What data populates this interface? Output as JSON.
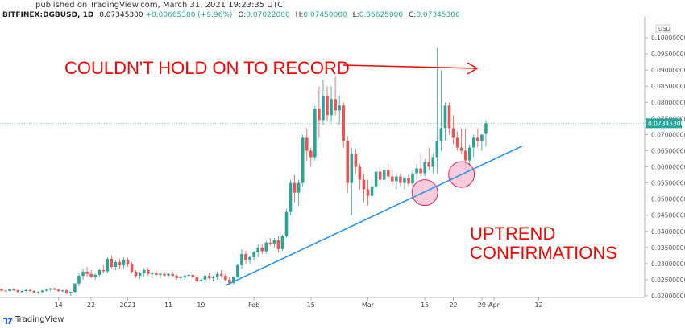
{
  "header": {
    "published": "published on TradingView.com, March 31, 2021 19:23:35 UTC",
    "symbol": "BITFINEX:DGBUSD, 1D",
    "price": "0.07345300",
    "change": "+0.00665300 (+9.96%)",
    "open_label": "O:",
    "open": "0.07022000",
    "high_label": "H:",
    "high": "0.07450000",
    "low_label": "L:",
    "low": "0.06625000",
    "close_label": "C:",
    "close": "0.07345300"
  },
  "footer": {
    "brand": "TradingView"
  },
  "colors": {
    "up": "#26a69a",
    "down": "#ef5350",
    "trendline": "#2196f3",
    "annotation": "#ff0000",
    "circle_fill": "#f8bbd0",
    "circle_stroke": "#e91e63"
  },
  "chart_data": {
    "type": "candlestick",
    "currency_label": "USD",
    "current_price_label": "0.07345300",
    "ylim": [
      0.0195,
      0.105
    ],
    "yticks": [
      0.1,
      0.095,
      0.09,
      0.085,
      0.08,
      0.075,
      0.07,
      0.065,
      0.06,
      0.055,
      0.05,
      0.045,
      0.04,
      0.035,
      0.03,
      0.025,
      0.02
    ],
    "ytick_labels": [
      "0.10000000",
      "0.09500000",
      "0.09000000",
      "0.08500000",
      "0.08000000",
      "0.07500000",
      "0.07000000",
      "0.06500000",
      "0.06000000",
      "0.05500000",
      "0.05000000",
      "0.04500000",
      "0.04000000",
      "0.03500000",
      "0.03000000",
      "0.02500000",
      "0.02000000"
    ],
    "xticks": [
      {
        "label": "14",
        "day": 14
      },
      {
        "label": "22",
        "day": 22
      },
      {
        "label": "2021",
        "day": 31
      },
      {
        "label": "11",
        "day": 41
      },
      {
        "label": "19",
        "day": 49
      },
      {
        "label": "Feb",
        "day": 62
      },
      {
        "label": "15",
        "day": 76
      },
      {
        "label": "Mar",
        "day": 90
      },
      {
        "label": "15",
        "day": 104
      },
      {
        "label": "22",
        "day": 111
      },
      {
        "label": "29",
        "day": 118
      },
      {
        "label": "Apr",
        "day": 121
      },
      {
        "label": "12",
        "day": 132
      }
    ],
    "candles": [
      [
        0.0221,
        0.0223,
        0.0213,
        0.0216
      ],
      [
        0.0216,
        0.0218,
        0.0212,
        0.0215
      ],
      [
        0.0215,
        0.0222,
        0.0213,
        0.022
      ],
      [
        0.022,
        0.0224,
        0.0215,
        0.0217
      ],
      [
        0.0217,
        0.0219,
        0.021,
        0.0212
      ],
      [
        0.0212,
        0.0217,
        0.0208,
        0.0215
      ],
      [
        0.0215,
        0.022,
        0.0212,
        0.0218
      ],
      [
        0.0218,
        0.0221,
        0.0213,
        0.0215
      ],
      [
        0.0215,
        0.0217,
        0.0209,
        0.0211
      ],
      [
        0.0211,
        0.0214,
        0.0206,
        0.0212
      ],
      [
        0.0212,
        0.0218,
        0.021,
        0.0216
      ],
      [
        0.0216,
        0.0222,
        0.0213,
        0.0219
      ],
      [
        0.0219,
        0.0225,
        0.0216,
        0.0223
      ],
      [
        0.0223,
        0.0226,
        0.0217,
        0.0219
      ],
      [
        0.0219,
        0.0222,
        0.0212,
        0.0215
      ],
      [
        0.0215,
        0.0219,
        0.0211,
        0.0217
      ],
      [
        0.0217,
        0.022,
        0.0205,
        0.0208
      ],
      [
        0.0208,
        0.0214,
        0.02,
        0.0212
      ],
      [
        0.0212,
        0.024,
        0.021,
        0.0238
      ],
      [
        0.0238,
        0.027,
        0.023,
        0.0262
      ],
      [
        0.0262,
        0.0285,
        0.025,
        0.0275
      ],
      [
        0.0275,
        0.029,
        0.026,
        0.0268
      ],
      [
        0.0268,
        0.028,
        0.0255,
        0.026
      ],
      [
        0.026,
        0.027,
        0.025,
        0.0265
      ],
      [
        0.0265,
        0.0285,
        0.0258,
        0.028
      ],
      [
        0.028,
        0.0295,
        0.027,
        0.0276
      ],
      [
        0.0276,
        0.032,
        0.027,
        0.0315
      ],
      [
        0.0315,
        0.0325,
        0.0285,
        0.029
      ],
      [
        0.029,
        0.031,
        0.028,
        0.0305
      ],
      [
        0.0305,
        0.0315,
        0.0285,
        0.0295
      ],
      [
        0.0295,
        0.032,
        0.0285,
        0.031
      ],
      [
        0.031,
        0.0318,
        0.029,
        0.0298
      ],
      [
        0.0298,
        0.0305,
        0.027,
        0.0275
      ],
      [
        0.0275,
        0.028,
        0.0255,
        0.0262
      ],
      [
        0.0262,
        0.0275,
        0.0252,
        0.027
      ],
      [
        0.027,
        0.0285,
        0.026,
        0.028
      ],
      [
        0.028,
        0.0288,
        0.0262,
        0.0268
      ],
      [
        0.0268,
        0.0275,
        0.0258,
        0.027
      ],
      [
        0.027,
        0.0278,
        0.0262,
        0.0265
      ],
      [
        0.0265,
        0.0272,
        0.0255,
        0.0268
      ],
      [
        0.0268,
        0.0275,
        0.026,
        0.0263
      ],
      [
        0.0263,
        0.027,
        0.0255,
        0.0268
      ],
      [
        0.0268,
        0.0275,
        0.026,
        0.0262
      ],
      [
        0.0262,
        0.0268,
        0.025,
        0.0255
      ],
      [
        0.0255,
        0.0262,
        0.0245,
        0.0258
      ],
      [
        0.0258,
        0.0266,
        0.025,
        0.0262
      ],
      [
        0.0262,
        0.027,
        0.0255,
        0.0265
      ],
      [
        0.0265,
        0.0272,
        0.0255,
        0.0258
      ],
      [
        0.0258,
        0.0265,
        0.024,
        0.0245
      ],
      [
        0.0245,
        0.0255,
        0.023,
        0.025
      ],
      [
        0.025,
        0.0265,
        0.0243,
        0.0262
      ],
      [
        0.0262,
        0.027,
        0.025,
        0.0255
      ],
      [
        0.0255,
        0.0262,
        0.0245,
        0.0258
      ],
      [
        0.0258,
        0.0275,
        0.025,
        0.0268
      ],
      [
        0.0268,
        0.028,
        0.0258,
        0.0262
      ],
      [
        0.0262,
        0.0268,
        0.0245,
        0.025
      ],
      [
        0.025,
        0.0258,
        0.0235,
        0.024
      ],
      [
        0.024,
        0.0262,
        0.0235,
        0.0258
      ],
      [
        0.0258,
        0.03,
        0.0255,
        0.0295
      ],
      [
        0.0295,
        0.0345,
        0.0285,
        0.033
      ],
      [
        0.033,
        0.034,
        0.03,
        0.031
      ],
      [
        0.031,
        0.0325,
        0.03,
        0.032
      ],
      [
        0.032,
        0.034,
        0.031,
        0.0335
      ],
      [
        0.0335,
        0.036,
        0.032,
        0.035
      ],
      [
        0.035,
        0.036,
        0.033,
        0.0338
      ],
      [
        0.0338,
        0.037,
        0.033,
        0.0365
      ],
      [
        0.0365,
        0.038,
        0.0355,
        0.036
      ],
      [
        0.036,
        0.038,
        0.035,
        0.0372
      ],
      [
        0.0372,
        0.0385,
        0.0335,
        0.0345
      ],
      [
        0.0345,
        0.039,
        0.034,
        0.0385
      ],
      [
        0.0385,
        0.047,
        0.038,
        0.046
      ],
      [
        0.046,
        0.056,
        0.045,
        0.055
      ],
      [
        0.055,
        0.0575,
        0.049,
        0.052
      ],
      [
        0.052,
        0.056,
        0.048,
        0.055
      ],
      [
        0.055,
        0.07,
        0.054,
        0.069
      ],
      [
        0.069,
        0.072,
        0.062,
        0.065
      ],
      [
        0.065,
        0.066,
        0.06,
        0.063
      ],
      [
        0.063,
        0.079,
        0.062,
        0.078
      ],
      [
        0.078,
        0.085,
        0.069,
        0.0745
      ],
      [
        0.0745,
        0.087,
        0.073,
        0.082
      ],
      [
        0.082,
        0.085,
        0.074,
        0.076
      ],
      [
        0.076,
        0.085,
        0.074,
        0.081
      ],
      [
        0.081,
        0.088,
        0.076,
        0.0775
      ],
      [
        0.0775,
        0.082,
        0.073,
        0.079
      ],
      [
        0.079,
        0.08,
        0.066,
        0.068
      ],
      [
        0.068,
        0.0695,
        0.052,
        0.055
      ],
      [
        0.055,
        0.066,
        0.045,
        0.064
      ],
      [
        0.064,
        0.0655,
        0.058,
        0.06
      ],
      [
        0.06,
        0.061,
        0.053,
        0.056
      ],
      [
        0.056,
        0.058,
        0.049,
        0.053
      ],
      [
        0.053,
        0.056,
        0.048,
        0.051
      ],
      [
        0.051,
        0.056,
        0.05,
        0.054
      ],
      [
        0.054,
        0.0595,
        0.052,
        0.0585
      ],
      [
        0.0585,
        0.06,
        0.054,
        0.056
      ],
      [
        0.056,
        0.06,
        0.054,
        0.059
      ],
      [
        0.059,
        0.061,
        0.055,
        0.057
      ],
      [
        0.057,
        0.059,
        0.054,
        0.0555
      ],
      [
        0.0555,
        0.058,
        0.053,
        0.057
      ],
      [
        0.057,
        0.058,
        0.054,
        0.055
      ],
      [
        0.055,
        0.057,
        0.053,
        0.0565
      ],
      [
        0.0565,
        0.0575,
        0.054,
        0.0548
      ],
      [
        0.0548,
        0.059,
        0.054,
        0.058
      ],
      [
        0.058,
        0.061,
        0.056,
        0.0595
      ],
      [
        0.0595,
        0.064,
        0.057,
        0.058
      ],
      [
        0.058,
        0.0625,
        0.057,
        0.0615
      ],
      [
        0.0615,
        0.066,
        0.059,
        0.06
      ],
      [
        0.06,
        0.064,
        0.058,
        0.063
      ],
      [
        0.063,
        0.097,
        0.058,
        0.068
      ],
      [
        0.068,
        0.09,
        0.065,
        0.072
      ],
      [
        0.072,
        0.08,
        0.068,
        0.079
      ],
      [
        0.079,
        0.08,
        0.07,
        0.072
      ],
      [
        0.072,
        0.076,
        0.067,
        0.069
      ],
      [
        0.069,
        0.071,
        0.065,
        0.066
      ],
      [
        0.066,
        0.072,
        0.064,
        0.065
      ],
      [
        0.065,
        0.072,
        0.059,
        0.062
      ],
      [
        0.062,
        0.067,
        0.06,
        0.066
      ],
      [
        0.066,
        0.07,
        0.063,
        0.069
      ],
      [
        0.069,
        0.072,
        0.066,
        0.068
      ],
      [
        0.068,
        0.07,
        0.065,
        0.07
      ],
      [
        0.0702,
        0.0745,
        0.0663,
        0.0735
      ]
    ],
    "annotations": [
      {
        "text": "COULDN'T HOLD ON TO RECORD",
        "type": "label_with_arrow"
      },
      {
        "text": "UPTREND",
        "type": "label"
      },
      {
        "text": "CONFIRMATIONS",
        "type": "label"
      }
    ],
    "trendline": [
      {
        "day": 55,
        "value": 0.0232
      },
      {
        "day": 128,
        "value": 0.0665
      }
    ],
    "circles": [
      {
        "day": 104,
        "value": 0.052
      },
      {
        "day": 113,
        "value": 0.0576
      }
    ]
  }
}
